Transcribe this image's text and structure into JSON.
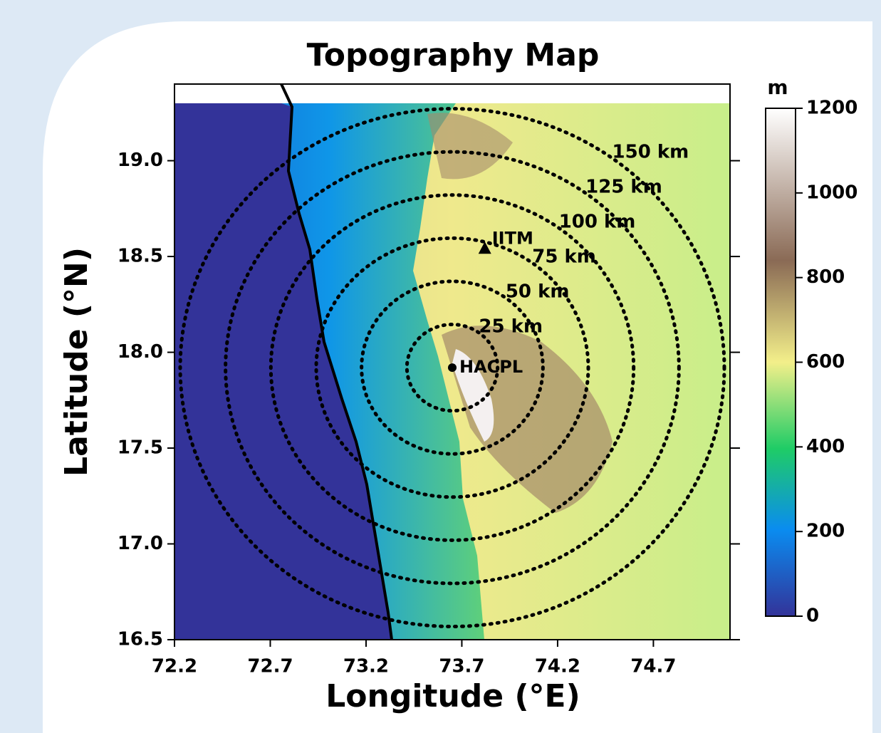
{
  "chart_data": {
    "type": "map",
    "title": "Topography Map",
    "x_label": "Longitude (°E)",
    "y_label": "Latitude (°N)",
    "xlim": [
      72.2,
      75.1
    ],
    "ylim": [
      16.5,
      19.4
    ],
    "xticks": [
      72.2,
      72.7,
      73.2,
      73.7,
      74.2,
      74.7
    ],
    "yticks": [
      16.5,
      {
        "value": 17,
        "label": "17.0"
      },
      17.5,
      {
        "value": 18,
        "label": "18.0"
      },
      18.5,
      {
        "value": 19,
        "label": "19.0"
      }
    ],
    "stations": [
      {
        "name": "HACPL",
        "lon": 73.65,
        "lat": 17.92
      },
      {
        "name": "IITM",
        "lon": 73.82,
        "lat": 18.54
      }
    ],
    "rings": [
      {
        "radius": 25,
        "label": "25 km"
      },
      {
        "radius": 50,
        "label": "50 km"
      },
      {
        "radius": 75,
        "label": "75 km"
      },
      {
        "radius": 100,
        "label": "100 km"
      },
      {
        "radius": 125,
        "label": "125 km"
      },
      {
        "radius": 150,
        "label": "150 km"
      }
    ],
    "colorbar": {
      "label": "m",
      "lim": [
        0,
        1200
      ],
      "ticks": [
        0,
        200,
        400,
        600,
        800,
        1000,
        1200
      ]
    }
  }
}
